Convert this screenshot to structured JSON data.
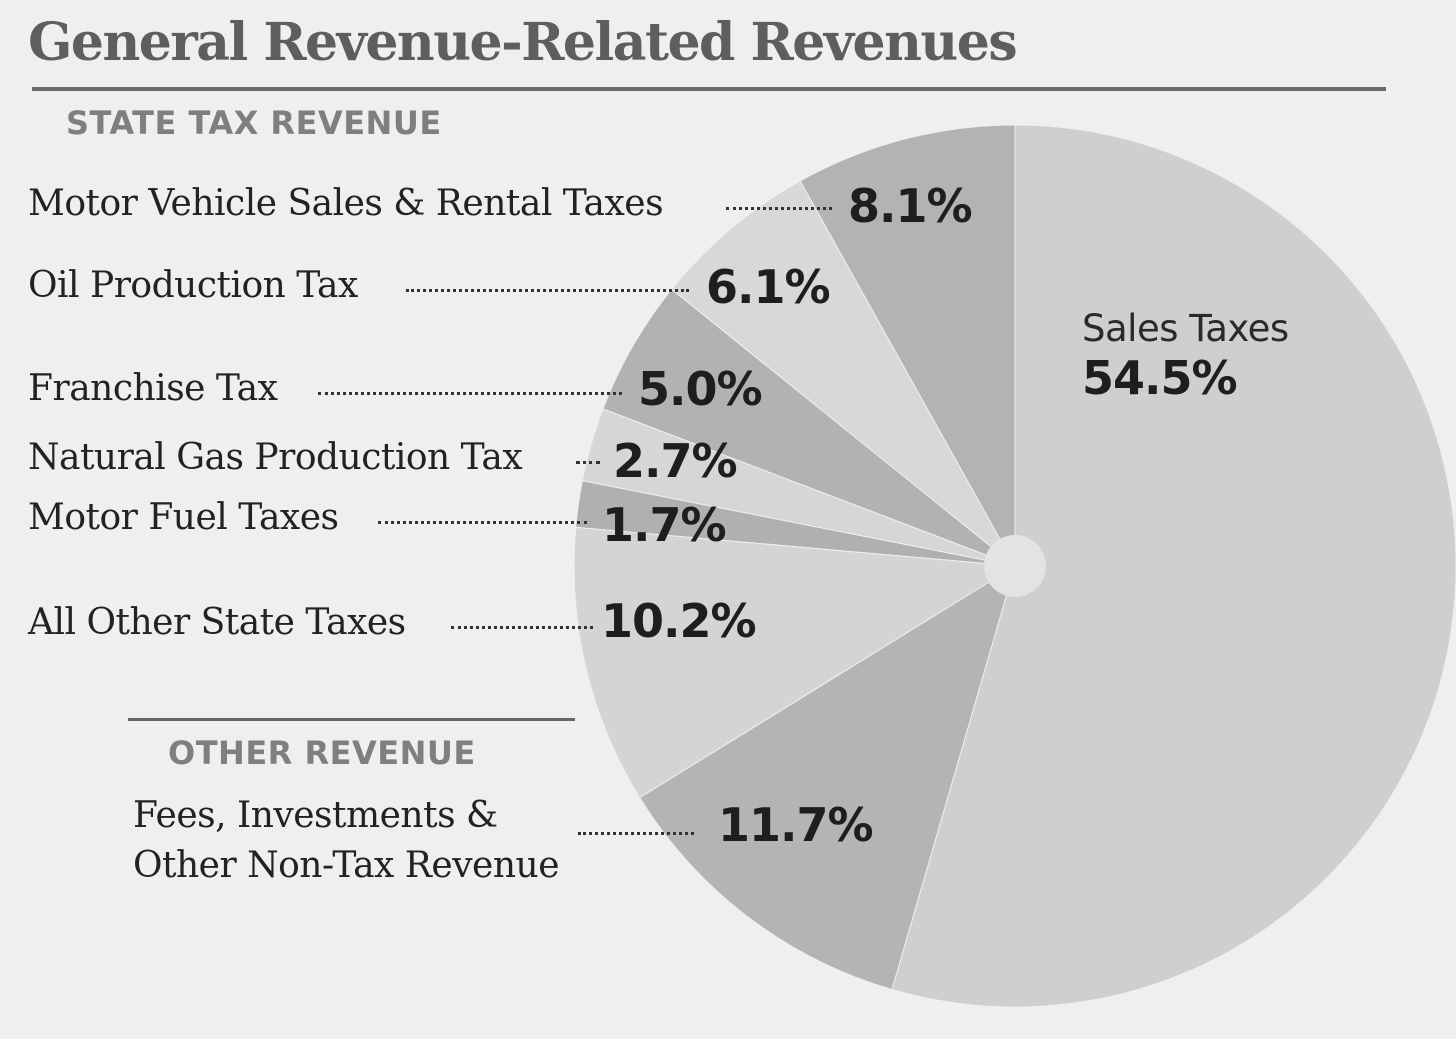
{
  "chart_data": {
    "type": "pie",
    "title": "General Revenue-Related Revenues",
    "groups": [
      {
        "heading": "STATE TAX REVENUE"
      },
      {
        "heading": "OTHER REVENUE"
      }
    ],
    "slices": [
      {
        "label": "Sales Taxes",
        "value": 54.5,
        "value_label": "54.5%",
        "group": "STATE TAX REVENUE",
        "color": "#cfcfcf"
      },
      {
        "label": "Fees, Investments & Other Non-Tax Revenue",
        "value": 11.7,
        "value_label": "11.7%",
        "group": "OTHER REVENUE",
        "color": "#b4b4b4"
      },
      {
        "label": "All Other State Taxes",
        "value": 10.2,
        "value_label": "10.2%",
        "group": "STATE TAX REVENUE",
        "color": "#d4d4d4"
      },
      {
        "label": "Motor Fuel Taxes",
        "value": 1.7,
        "value_label": "1.7%",
        "group": "STATE TAX REVENUE",
        "color": "#b0b0b0"
      },
      {
        "label": "Natural Gas Production Tax",
        "value": 2.7,
        "value_label": "2.7%",
        "group": "STATE TAX REVENUE",
        "color": "#d6d6d6"
      },
      {
        "label": "Franchise Tax",
        "value": 5.0,
        "value_label": "5.0%",
        "group": "STATE TAX REVENUE",
        "color": "#b2b2b2"
      },
      {
        "label": "Oil Production Tax",
        "value": 6.1,
        "value_label": "6.1%",
        "group": "STATE TAX REVENUE",
        "color": "#d8d8d8"
      },
      {
        "label": "Motor Vehicle Sales & Rental Taxes",
        "value": 8.1,
        "value_label": "8.1%",
        "group": "STATE TAX REVENUE",
        "color": "#b3b3b3"
      }
    ],
    "other_label_lines": [
      "Fees, Investments &",
      "Other Non-Tax Revenue"
    ],
    "legend": "none",
    "grid": false
  }
}
